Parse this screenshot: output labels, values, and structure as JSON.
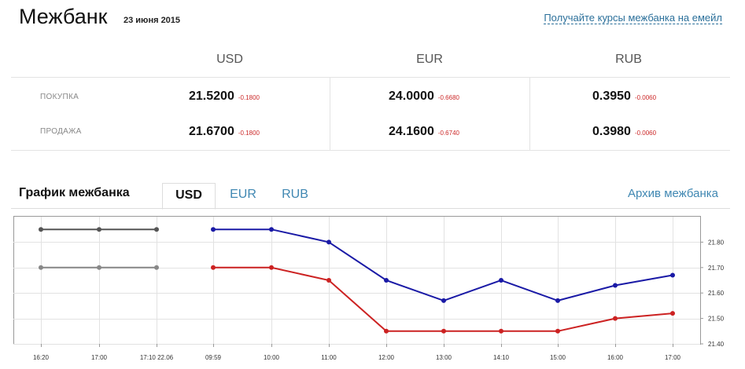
{
  "header": {
    "title": "Межбанк",
    "date": "23 июня 2015",
    "email_link": "Получайте курсы межбанка на емейл"
  },
  "rates": {
    "currencies": [
      "USD",
      "EUR",
      "RUB"
    ],
    "rows": [
      {
        "label": "ПОКУПКА",
        "cells": [
          {
            "value": "21.5200",
            "change": "-0.1800"
          },
          {
            "value": "24.0000",
            "change": "-0.6680"
          },
          {
            "value": "0.3950",
            "change": "-0.0060"
          }
        ]
      },
      {
        "label": "ПРОДАЖА",
        "cells": [
          {
            "value": "21.6700",
            "change": "-0.1800"
          },
          {
            "value": "24.1600",
            "change": "-0.6740"
          },
          {
            "value": "0.3980",
            "change": "-0.0060"
          }
        ]
      }
    ]
  },
  "chart_section": {
    "title": "График межбанка",
    "tabs": [
      "USD",
      "EUR",
      "RUB"
    ],
    "active_tab": "USD",
    "archive_link": "Архив межбанка"
  },
  "colors": {
    "sell": "#1a1aa6",
    "buy": "#cc2222",
    "prev_sell": "#555555",
    "prev_buy": "#888888",
    "change": "#cc2a2a",
    "link": "#3f87b2"
  },
  "chart_data": {
    "type": "line",
    "x": [
      "16:20",
      "17:00",
      "17:10 22.06",
      "09:59",
      "10:00",
      "11:00",
      "12:00",
      "13:00",
      "14:10",
      "15:00",
      "16:00",
      "17:00"
    ],
    "y_ticks": [
      "21.40",
      "21.50",
      "21.60",
      "21.70",
      "21.80"
    ],
    "ylim": [
      21.4,
      21.9
    ],
    "grid": true,
    "series": [
      {
        "values": [
          21.85,
          21.85,
          21.85,
          null,
          null,
          null,
          null,
          null,
          null,
          null,
          null,
          null
        ],
        "color": "#555555"
      },
      {
        "values": [
          21.7,
          21.7,
          21.7,
          null,
          null,
          null,
          null,
          null,
          null,
          null,
          null,
          null
        ],
        "color": "#888888"
      },
      {
        "values": [
          null,
          null,
          null,
          21.85,
          21.85,
          21.8,
          21.65,
          21.57,
          21.65,
          21.57,
          21.63,
          21.67
        ],
        "color": "#1a1aa6"
      },
      {
        "values": [
          null,
          null,
          null,
          21.7,
          21.7,
          21.65,
          21.45,
          21.45,
          21.45,
          21.45,
          21.5,
          21.52
        ],
        "color": "#cc2222"
      }
    ]
  }
}
